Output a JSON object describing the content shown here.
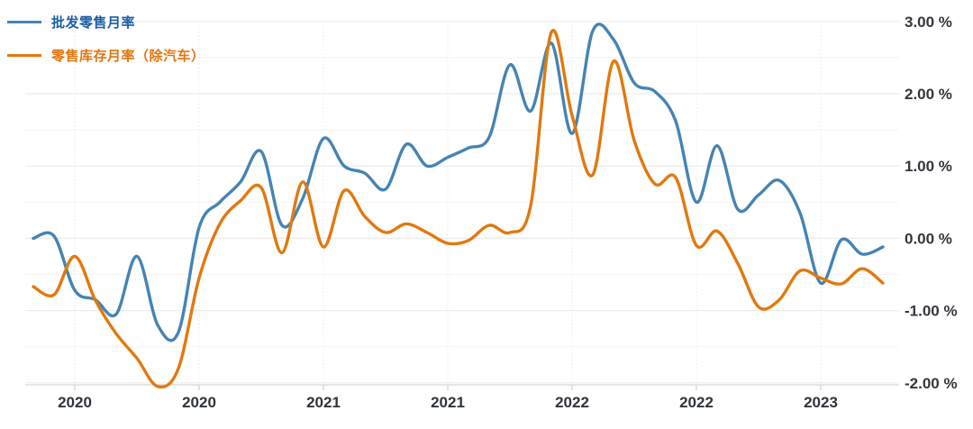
{
  "legend": {
    "items": [
      {
        "label": "批发零售月率",
        "swatch_color": "#4584b4",
        "text_color": "#1c5fa5"
      },
      {
        "label": "零售库存月率（除汽车）",
        "swatch_color": "#e1790f",
        "text_color": "#e0770e"
      }
    ]
  },
  "chart_data": {
    "type": "line",
    "smooth": true,
    "grid": true,
    "legend_position": "top-left",
    "x_axis": {
      "tick_labels": [
        "2020",
        "2020",
        "2021",
        "2021",
        "2022",
        "2022",
        "2023"
      ],
      "tick_point_indices": [
        2,
        8,
        14,
        20,
        26,
        32,
        38
      ],
      "note": "ticks every 6 months"
    },
    "y_axis": {
      "tick_labels": [
        "3.00 %",
        "2.00 %",
        "1.00 %",
        "0.00 %",
        "-1.00 %",
        "-2.00 %"
      ],
      "tick_values": [
        3,
        2,
        1,
        0,
        -1,
        -2
      ],
      "minor_tick_values": [
        2.5,
        1.5,
        0.5,
        -0.5,
        -1.5
      ],
      "unit": "%",
      "min": -2,
      "max": 3
    },
    "series": [
      {
        "name": "批发零售月率",
        "color": "#4584b4",
        "values": [
          0.0,
          0.03,
          -0.72,
          -0.85,
          -1.05,
          -0.25,
          -1.2,
          -1.3,
          0.15,
          0.5,
          0.78,
          1.2,
          0.18,
          0.55,
          1.38,
          1.0,
          0.9,
          0.68,
          1.3,
          1.0,
          1.12,
          1.25,
          1.4,
          2.4,
          1.76,
          2.7,
          1.45,
          2.87,
          2.75,
          2.15,
          2.03,
          1.62,
          0.5,
          1.28,
          0.4,
          0.6,
          0.8,
          0.35,
          -0.62,
          -0.02,
          -0.22,
          -0.12
        ]
      },
      {
        "name": "零售库存月率（除汽车）",
        "color": "#e1790f",
        "values": [
          -0.67,
          -0.78,
          -0.25,
          -0.86,
          -1.32,
          -1.66,
          -2.05,
          -1.8,
          -0.55,
          0.2,
          0.52,
          0.7,
          -0.2,
          0.78,
          -0.12,
          0.66,
          0.3,
          0.08,
          0.2,
          0.08,
          -0.07,
          -0.03,
          0.18,
          0.08,
          0.45,
          2.85,
          1.7,
          0.88,
          2.45,
          1.35,
          0.75,
          0.84,
          -0.1,
          0.1,
          -0.35,
          -0.95,
          -0.85,
          -0.45,
          -0.55,
          -0.63,
          -0.42,
          -0.62
        ]
      }
    ],
    "colors": {
      "major_grid": "#ececec",
      "minor_grid": "#f8f3f2",
      "vertical_grid": "#e8e8e8",
      "axis_line": "#d6d6d6",
      "tick_text": "#2f343c"
    }
  }
}
